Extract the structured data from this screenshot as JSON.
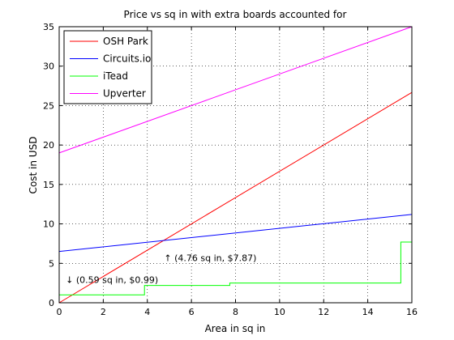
{
  "chart_data": {
    "type": "line",
    "title": "Price vs sq in with extra boards accounted for",
    "xlabel": "Area in sq in",
    "ylabel": "Cost in USD",
    "xlim": [
      0,
      16
    ],
    "ylim": [
      0,
      35
    ],
    "xticks": [
      0,
      2,
      4,
      6,
      8,
      10,
      12,
      14,
      16
    ],
    "yticks": [
      0,
      5,
      10,
      15,
      20,
      25,
      30,
      35
    ],
    "grid": true,
    "legend_position": "top-left",
    "series": [
      {
        "name": "OSH Park",
        "color": "#ff0000",
        "x": [
          0,
          16
        ],
        "y": [
          0,
          26.67
        ]
      },
      {
        "name": "Circuits.io",
        "color": "#0000ff",
        "x": [
          0,
          16
        ],
        "y": [
          6.5,
          11.2
        ]
      },
      {
        "name": "iTead",
        "color": "#00ff00",
        "x": [
          0,
          3.87,
          3.87,
          7.74,
          7.74,
          15.5,
          15.5,
          16
        ],
        "y": [
          1.0,
          1.0,
          2.2,
          2.2,
          2.5,
          2.5,
          7.7,
          7.7
        ]
      },
      {
        "name": "Upverter",
        "color": "#ff00ff",
        "x": [
          0,
          16
        ],
        "y": [
          19.0,
          35.0
        ]
      }
    ],
    "annotations": [
      {
        "text": "↑ (4.76 sq in, $7.87)",
        "x": 4.76,
        "y": 5.3
      },
      {
        "text": "↓ (0.59 sq in, $0.99)",
        "x": 0.3,
        "y": 2.5
      }
    ]
  }
}
